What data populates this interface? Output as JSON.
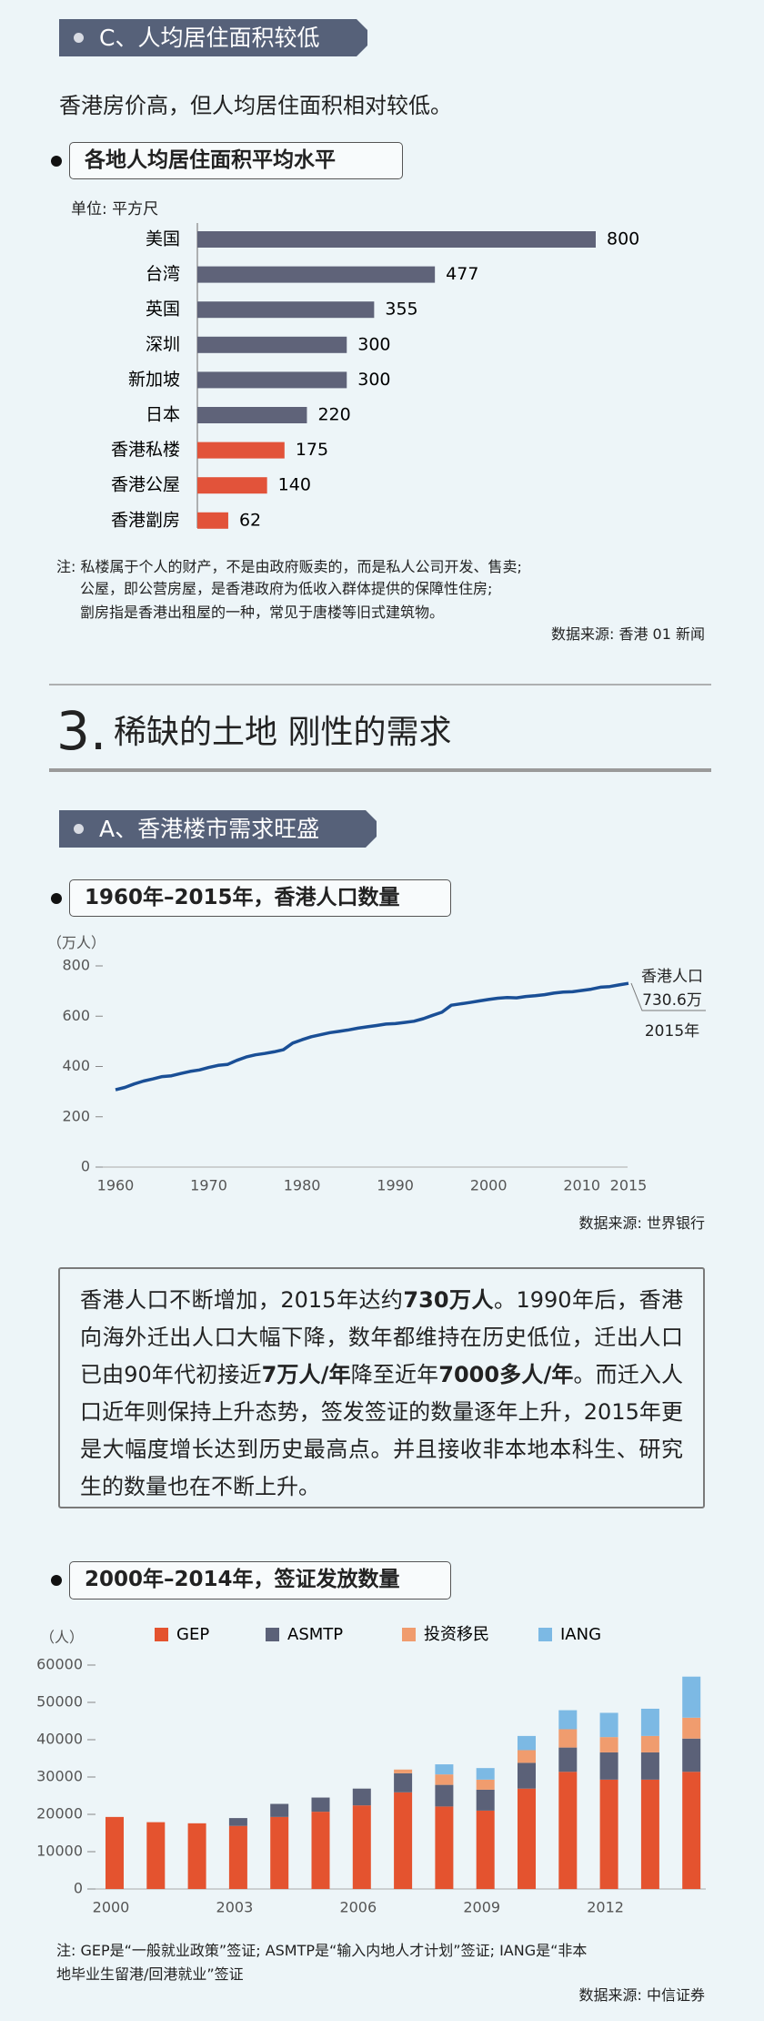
{
  "header_c": "C、人均居住面积较低",
  "intro": "香港房价高，但人均居住面积相对较低。",
  "section_number": "3.",
  "section_title": "稀缺的土地 刚性的需求",
  "header_a": "A、香港楼市需求旺盛",
  "paragraph": [
    {
      "text": "香港人口不断增加，2015年达约",
      "bold": false
    },
    {
      "text": "730万人",
      "bold": true
    },
    {
      "text": "。1990年后，香港向海外迁出人口大幅下降，数年都维持在历史低位，迁出人口已由90年代初接近",
      "bold": false
    },
    {
      "text": "7万人/年",
      "bold": true
    },
    {
      "text": "降至近年",
      "bold": false
    },
    {
      "text": "7000多人/年",
      "bold": true
    },
    {
      "text": "。而迁入人口近年则保持上升态势，签发签证的数量逐年上升，2015年更是大幅度增长达到历史最高点。并且接收非本地本科生、研究生的数量也在不断上升。",
      "bold": false
    }
  ],
  "chart_data": [
    {
      "type": "hbar",
      "title": "各地人均居住面积平均水平",
      "unit_label": "单位: 平方尺",
      "categories": [
        "美国",
        "台湾",
        "英国",
        "深圳",
        "新加坡",
        "日本",
        "香港私楼",
        "香港公屋",
        "香港劏房"
      ],
      "values": [
        800,
        477,
        355,
        300,
        300,
        220,
        175,
        140,
        62
      ],
      "colors": [
        "#5f6379",
        "#5f6379",
        "#5f6379",
        "#5f6379",
        "#5f6379",
        "#5f6379",
        "#e2533a",
        "#e2533a",
        "#e2533a"
      ],
      "notes": [
        "注: 私楼属于个人的财产，不是由政府贩卖的，而是私人公司开发、售卖;",
        "公屋，即公营房屋，是香港政府为低收入群体提供的保障性住房;",
        "劏房指是香港出租屋的一种，常见于唐楼等旧式建筑物。"
      ],
      "source": "数据来源: 香港 01 新闻"
    },
    {
      "type": "line",
      "title": "1960年–2015年，香港人口数量",
      "y_unit": "（万人）",
      "x": [
        1960,
        1961,
        1962,
        1963,
        1964,
        1965,
        1966,
        1967,
        1968,
        1969,
        1970,
        1971,
        1972,
        1973,
        1974,
        1975,
        1976,
        1977,
        1978,
        1979,
        1980,
        1981,
        1982,
        1983,
        1984,
        1985,
        1986,
        1987,
        1988,
        1989,
        1990,
        1991,
        1992,
        1993,
        1994,
        1995,
        1996,
        1997,
        1998,
        1999,
        2000,
        2001,
        2002,
        2003,
        2004,
        2005,
        2006,
        2007,
        2008,
        2009,
        2010,
        2011,
        2012,
        2013,
        2014,
        2015
      ],
      "series": [
        {
          "color": "#1a4f96",
          "values": [
            307.5,
            316.8,
            330.5,
            342.1,
            350.5,
            359.8,
            363.0,
            372.3,
            380.3,
            386.4,
            395.9,
            404.5,
            407.8,
            424.1,
            437.8,
            446.2,
            451.8,
            458.4,
            466.7,
            492.9,
            506.3,
            518.3,
            526.5,
            534.5,
            539.8,
            545.6,
            552.5,
            558.0,
            562.8,
            568.6,
            570.5,
            575.2,
            580.0,
            590.1,
            603.5,
            615.6,
            643.5,
            648.9,
            654.4,
            660.6,
            666.5,
            671.5,
            674.4,
            673.1,
            678.4,
            681.3,
            685.7,
            691.6,
            695.7,
            697.3,
            702.4,
            707.2,
            715.4,
            717.9,
            724.2,
            730.6
          ]
        }
      ],
      "xlim": [
        1960,
        2015
      ],
      "xticks": [
        1960,
        1970,
        1980,
        1990,
        2000,
        2010,
        2015
      ],
      "ylim": [
        0,
        800
      ],
      "yticks": [
        0,
        200,
        400,
        600,
        800
      ],
      "annotations": [
        "香港人口",
        "730.6万",
        "2015年"
      ],
      "source": "数据来源: 世界银行"
    },
    {
      "type": "stacked-bar",
      "title": "2000年–2014年，签证发放数量",
      "y_unit": "（人）",
      "categories": [
        "2000",
        null,
        null,
        "2003",
        null,
        null,
        "2006",
        null,
        null,
        "2009",
        null,
        null,
        "2012",
        null,
        null
      ],
      "series": [
        {
          "name": "GEP",
          "color": "#e4532f",
          "values": [
            19300,
            17900,
            17600,
            16900,
            19300,
            20700,
            22400,
            25900,
            22100,
            21000,
            26900,
            31400,
            29300,
            29300,
            31400
          ]
        },
        {
          "name": "ASMTP",
          "color": "#5b6178",
          "values": [
            0,
            0,
            0,
            2100,
            3500,
            3800,
            4500,
            5100,
            5800,
            5600,
            6900,
            6500,
            7300,
            7300,
            8900
          ]
        },
        {
          "name": "投资移民",
          "color": "#f09c6e",
          "values": [
            0,
            0,
            0,
            0,
            0,
            0,
            0,
            1000,
            2800,
            2700,
            3400,
            4900,
            4100,
            4400,
            5600
          ]
        },
        {
          "name": "IANG",
          "color": "#7cb9e4",
          "values": [
            0,
            0,
            0,
            0,
            0,
            0,
            0,
            0,
            2700,
            3100,
            3800,
            5100,
            6500,
            7300,
            11000
          ]
        }
      ],
      "ylim": [
        0,
        60000
      ],
      "yticks": [
        0,
        10000,
        20000,
        30000,
        40000,
        50000,
        60000
      ],
      "notes": [
        "注: GEP是“一般就业政策”签证; ASMTP是“输入内地人才计划”签证; IANG是“非本",
        "地毕业生留港/回港就业”签证"
      ],
      "source": "数据来源: 中信证券"
    }
  ]
}
